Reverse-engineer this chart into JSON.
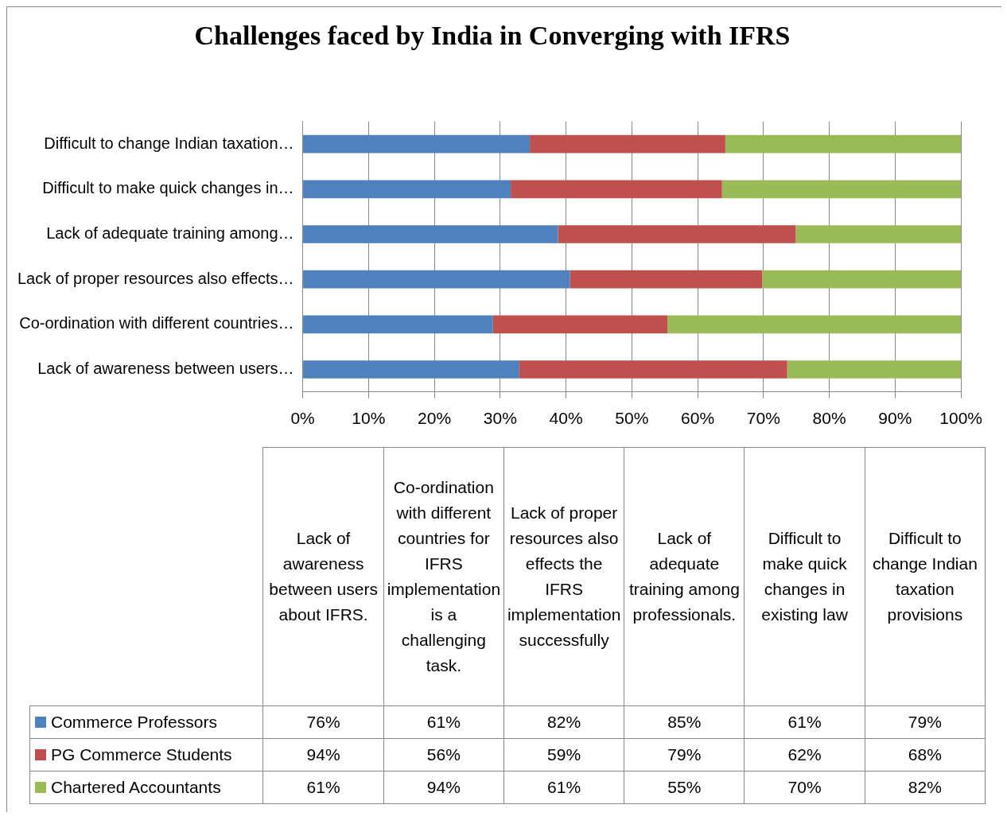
{
  "chart_data": {
    "type": "bar",
    "orientation": "horizontal",
    "stacked": true,
    "title": "Challenges faced by India in Converging with IFRS",
    "categories": [
      "Difficult to change Indian taxation…",
      "Difficult to make quick changes in…",
      "Lack of adequate training among…",
      "Lack of proper resources also effects…",
      "Co-ordination with different countries…",
      "Lack of awareness between users…"
    ],
    "annotations": [
      "Lack of awareness between users about IFRS.",
      "Co-ordination with different countries for IFRS implementation is a challenging task.",
      "Lack of proper resources also effects the IFRS implementation successfully",
      "Lack of adequate training among professionals.",
      "Difficult to make quick changes in existing law",
      "Difficult to change Indian taxation provisions",
      "76%",
      "61%",
      "82%",
      "85%",
      "61%",
      "79%",
      "94%",
      "56%",
      "59%",
      "79%",
      "62%",
      "68%",
      "61%",
      "94%",
      "61%",
      "55%",
      "70%",
      "82%"
    ],
    "series": [
      {
        "name": "Commerce Professors",
        "color": "#4f81bd",
        "values": [
          34.5,
          31.6,
          38.8,
          40.6,
          28.9,
          32.9
        ]
      },
      {
        "name": "PG Commerce Students",
        "color": "#c0504d",
        "values": [
          29.7,
          32.1,
          36.1,
          29.2,
          26.5,
          40.7
        ]
      },
      {
        "name": "Chartered Accountants",
        "color": "#9bbb59",
        "values": [
          35.8,
          36.3,
          25.1,
          30.2,
          44.6,
          26.4
        ]
      }
    ],
    "xlim": [
      0,
      100
    ],
    "xticks": [
      {
        "value": 0,
        "label": "0%"
      },
      {
        "value": 10,
        "label": "10%"
      },
      {
        "value": 20,
        "label": "20%"
      },
      {
        "value": 30,
        "label": "30%"
      },
      {
        "value": 40,
        "label": "40%"
      },
      {
        "value": 50,
        "label": "50%"
      },
      {
        "value": 60,
        "label": "60%"
      },
      {
        "value": 70,
        "label": "70%"
      },
      {
        "value": 80,
        "label": "80%"
      },
      {
        "value": 90,
        "label": "90%"
      },
      {
        "value": 100,
        "label": "100%"
      }
    ],
    "grid": "x",
    "legend": "bottom"
  }
}
